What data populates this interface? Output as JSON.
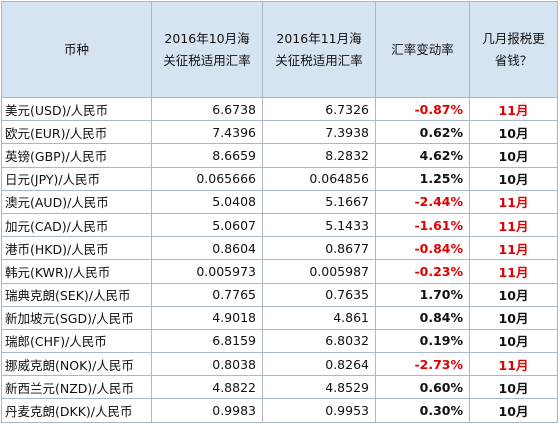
{
  "header": {
    "currency": "币种",
    "oct_rate_line1": "2016年10月海",
    "oct_rate_line2": "关征税适用汇率",
    "nov_rate_line1": "2016年11月海",
    "nov_rate_line2": "关征税适用汇率",
    "change": "汇率变动率",
    "cheaper_line1": "几月报税更",
    "cheaper_line2": "省钱？"
  },
  "colors": {
    "negative": "#e00000",
    "positive": "#111111",
    "header_bg": "#d6e3f1",
    "border": "#a9b7c9"
  },
  "rows": [
    {
      "currency": "美元(USD)/人民币",
      "oct": "6.6738",
      "nov": "6.7326",
      "change": "-0.87%",
      "month": "11月",
      "negative": true
    },
    {
      "currency": "欧元(EUR)/人民币",
      "oct": "7.4396",
      "nov": "7.3938",
      "change": "0.62%",
      "month": "10月",
      "negative": false
    },
    {
      "currency": "英镑(GBP)/人民币",
      "oct": "8.6659",
      "nov": "8.2832",
      "change": "4.62%",
      "month": "10月",
      "negative": false
    },
    {
      "currency": "日元(JPY)/人民币",
      "oct": "0.065666",
      "nov": "0.064856",
      "change": "1.25%",
      "month": "10月",
      "negative": false
    },
    {
      "currency": "澳元(AUD)/人民币",
      "oct": "5.0408",
      "nov": "5.1667",
      "change": "-2.44%",
      "month": "11月",
      "negative": true
    },
    {
      "currency": "加元(CAD)/人民币",
      "oct": "5.0607",
      "nov": "5.1433",
      "change": "-1.61%",
      "month": "11月",
      "negative": true
    },
    {
      "currency": "港币(HKD)/人民币",
      "oct": "0.8604",
      "nov": "0.8677",
      "change": "-0.84%",
      "month": "11月",
      "negative": true
    },
    {
      "currency": "韩元(KWR)/人民币",
      "oct": "0.005973",
      "nov": "0.005987",
      "change": "-0.23%",
      "month": "11月",
      "negative": true
    },
    {
      "currency": "瑞典克朗(SEK)/人民币",
      "oct": "0.7765",
      "nov": "0.7635",
      "change": "1.70%",
      "month": "10月",
      "negative": false
    },
    {
      "currency": "新加坡元(SGD)/人民币",
      "oct": "4.9018",
      "nov": "4.861",
      "change": "0.84%",
      "month": "10月",
      "negative": false
    },
    {
      "currency": "瑞郎(CHF)/人民币",
      "oct": "6.8159",
      "nov": "6.8032",
      "change": "0.19%",
      "month": "10月",
      "negative": false
    },
    {
      "currency": "挪威克朗(NOK)/人民币",
      "oct": "0.8038",
      "nov": "0.8264",
      "change": "-2.73%",
      "month": "11月",
      "negative": true
    },
    {
      "currency": "新西兰元(NZD)/人民币",
      "oct": "4.8822",
      "nov": "4.8529",
      "change": "0.60%",
      "month": "10月",
      "negative": false
    },
    {
      "currency": "丹麦克朗(DKK)/人民币",
      "oct": "0.9983",
      "nov": "0.9953",
      "change": "0.30%",
      "month": "10月",
      "negative": false
    }
  ]
}
